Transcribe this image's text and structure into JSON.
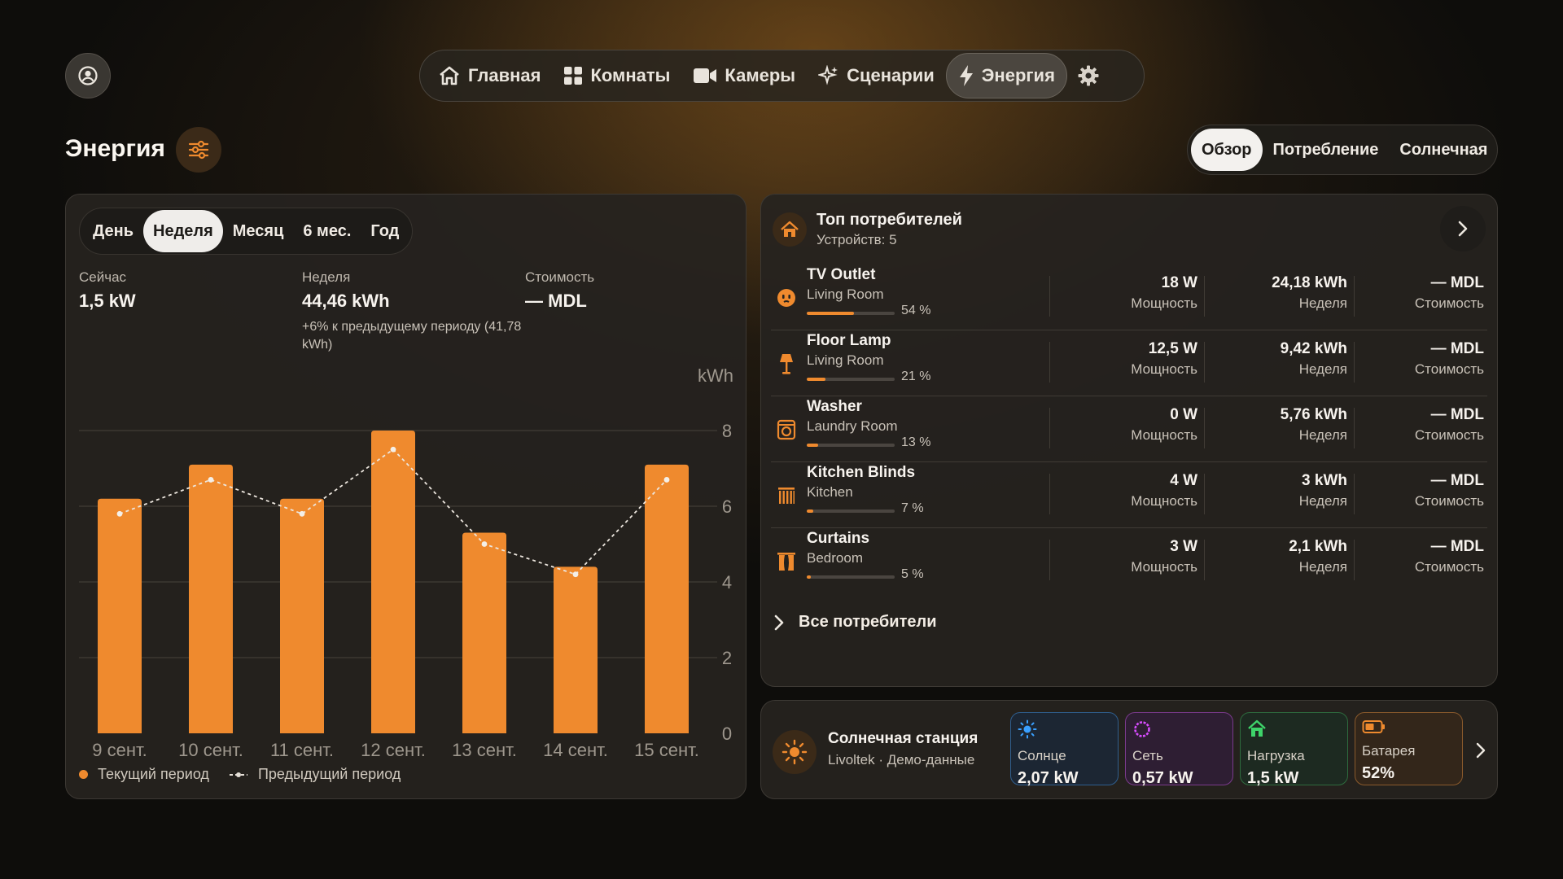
{
  "nav": {
    "items": [
      {
        "label": "Главная",
        "icon": "home-icon"
      },
      {
        "label": "Комнаты",
        "icon": "grid-icon"
      },
      {
        "label": "Камеры",
        "icon": "camera-icon"
      },
      {
        "label": "Сценарии",
        "icon": "sparkle-icon"
      },
      {
        "label": "Энергия",
        "icon": "lightning-icon",
        "active": true
      }
    ]
  },
  "header": {
    "title": "Энергия"
  },
  "view_tabs": [
    "Обзор",
    "Потребление",
    "Солнечная"
  ],
  "period_tabs": [
    "День",
    "Неделя",
    "Месяц",
    "6 мес.",
    "Год"
  ],
  "stats": {
    "now": {
      "label": "Сейчас",
      "value": "1,5 kW"
    },
    "week": {
      "label": "Неделя",
      "value": "44,46 kWh",
      "sub": "+6% к предыдущему периоду (41,78 kWh)"
    },
    "cost": {
      "label": "Стоимость",
      "value": "— MDL"
    }
  },
  "chart_data": {
    "type": "bar",
    "ylabel": "kWh",
    "ylim": [
      0,
      8
    ],
    "yticks": [
      "0",
      "2",
      "4",
      "6",
      "8"
    ],
    "categories": [
      "9 сент.",
      "10 сент.",
      "11 сент.",
      "12 сент.",
      "13 сент.",
      "14 сент.",
      "15 сент."
    ],
    "series": [
      {
        "name": "Текущий период",
        "type": "bar",
        "values": [
          6.2,
          7.1,
          6.2,
          8.0,
          5.3,
          4.4,
          7.1
        ]
      },
      {
        "name": "Предыдущий период",
        "type": "line",
        "values": [
          5.8,
          6.7,
          5.8,
          7.5,
          5.0,
          4.2,
          6.7
        ]
      }
    ],
    "legend": "bottom-left"
  },
  "consumers": {
    "title": "Топ потребителей",
    "count": "Устройств: 5",
    "power_label": "Мощность",
    "week_label": "Неделя",
    "cost_label": "Стоимость",
    "items": [
      {
        "name": "TV Outlet",
        "room": "Living Room",
        "pct": "54 %",
        "share": 0.54,
        "power": "18 W",
        "week": "24,18 kWh",
        "cost": "— MDL"
      },
      {
        "name": "Floor Lamp",
        "room": "Living Room",
        "pct": "21 %",
        "share": 0.21,
        "power": "12,5 W",
        "week": "9,42 kWh",
        "cost": "— MDL"
      },
      {
        "name": "Washer",
        "room": "Laundry Room",
        "pct": "13 %",
        "share": 0.13,
        "power": "0 W",
        "week": "5,76 kWh",
        "cost": "— MDL"
      },
      {
        "name": "Kitchen Blinds",
        "room": "Kitchen",
        "pct": "7 %",
        "share": 0.07,
        "power": "4 W",
        "week": "3 kWh",
        "cost": "— MDL"
      },
      {
        "name": "Curtains",
        "room": "Bedroom",
        "pct": "5 %",
        "share": 0.05,
        "power": "3 W",
        "week": "2,1 kWh",
        "cost": "— MDL"
      }
    ],
    "all_link": "Все потребители"
  },
  "solar": {
    "title": "Солнечная станция",
    "sub": "Livoltek · Демо-данные",
    "tiles": [
      {
        "label": "Солнце",
        "value": "2,07 kW",
        "color": "#3aa0ff"
      },
      {
        "label": "Сеть",
        "value": "0,57 kW",
        "color": "#d84cff"
      },
      {
        "label": "Нагрузка",
        "value": "1,5 kW",
        "color": "#3ed46a"
      },
      {
        "label": "Батарея",
        "value": "52%",
        "color": "#ef8a2e"
      }
    ]
  },
  "colors": {
    "accent": "#ef8a2e"
  }
}
